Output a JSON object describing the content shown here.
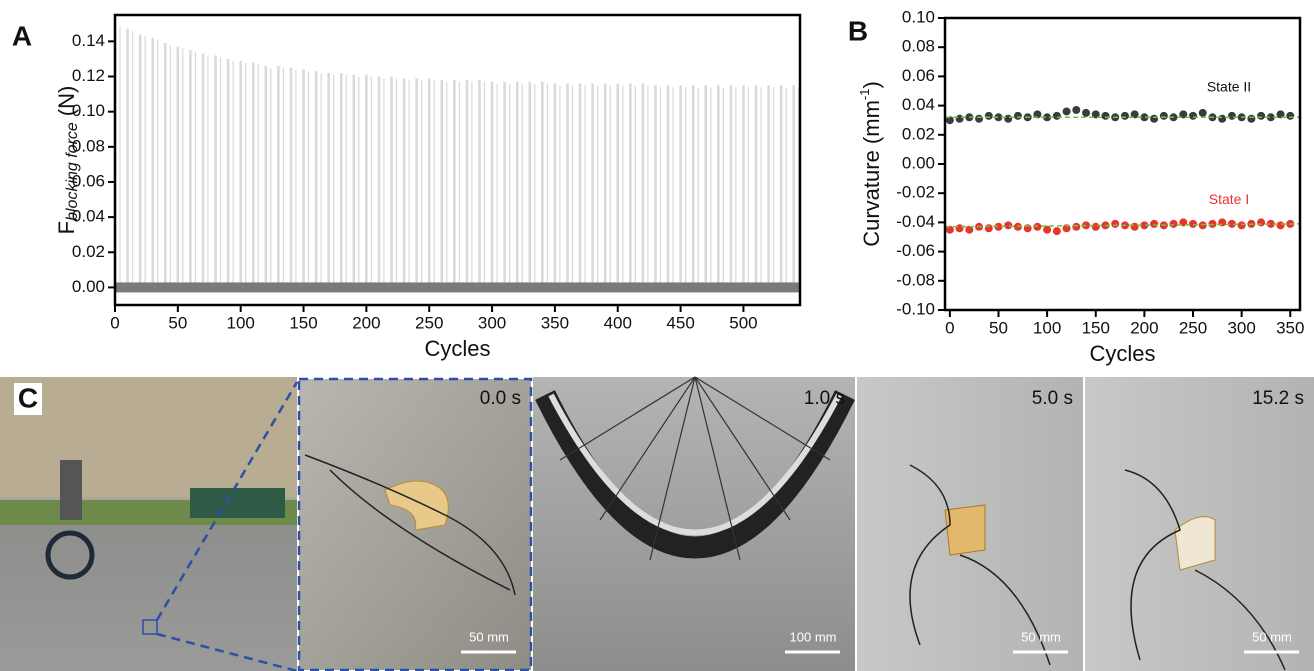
{
  "chart_data": [
    {
      "type": "spike",
      "panel": "A",
      "xlabel": "Cycles",
      "ylabel": [
        "F",
        "blocking force",
        "(N)"
      ],
      "x": [
        0,
        10,
        20,
        30,
        40,
        50,
        60,
        70,
        80,
        90,
        100,
        110,
        120,
        130,
        140,
        150,
        160,
        170,
        180,
        190,
        200,
        210,
        220,
        230,
        240,
        250,
        260,
        270,
        280,
        290,
        300,
        310,
        320,
        330,
        340,
        350,
        360,
        370,
        380,
        390,
        400,
        410,
        420,
        430,
        440,
        450,
        460,
        470,
        480,
        490,
        500,
        510,
        520,
        530,
        540
      ],
      "values": [
        0.15,
        0.147,
        0.144,
        0.142,
        0.139,
        0.137,
        0.135,
        0.133,
        0.132,
        0.13,
        0.129,
        0.128,
        0.126,
        0.126,
        0.125,
        0.124,
        0.123,
        0.122,
        0.122,
        0.121,
        0.121,
        0.12,
        0.12,
        0.119,
        0.119,
        0.119,
        0.118,
        0.118,
        0.118,
        0.118,
        0.117,
        0.117,
        0.117,
        0.117,
        0.117,
        0.116,
        0.116,
        0.116,
        0.116,
        0.116,
        0.116,
        0.116,
        0.116,
        0.115,
        0.115,
        0.115,
        0.115,
        0.115,
        0.115,
        0.115,
        0.115,
        0.115,
        0.115,
        0.115,
        0.115
      ],
      "baseline": 0,
      "color": "#d6dadb",
      "baseline_color": "#7a7a7a",
      "xlim": [
        0,
        545
      ],
      "xticks": [
        0,
        50,
        100,
        150,
        200,
        250,
        300,
        350,
        400,
        450,
        500
      ],
      "ylim": [
        -0.01,
        0.155
      ],
      "yticks": [
        {
          "value": 0,
          "label": "0.00"
        },
        {
          "value": 0.02,
          "label": "0.02"
        },
        {
          "value": 0.04,
          "label": "0.04"
        },
        {
          "value": 0.06,
          "label": "0.06"
        },
        {
          "value": 0.08,
          "label": "0.08"
        },
        {
          "value": 0.1,
          "label": "0.10"
        },
        {
          "value": 0.12,
          "label": "0.12"
        },
        {
          "value": 0.14,
          "label": "0.14"
        }
      ]
    },
    {
      "type": "scatter",
      "panel": "B",
      "xlabel": "Cycles",
      "ylabel": [
        "Curvature (mm",
        "-1",
        ")"
      ],
      "x": [
        0,
        10,
        20,
        30,
        40,
        50,
        60,
        70,
        80,
        90,
        100,
        110,
        120,
        130,
        140,
        150,
        160,
        170,
        180,
        190,
        200,
        210,
        220,
        230,
        240,
        250,
        260,
        270,
        280,
        290,
        300,
        310,
        320,
        330,
        340,
        350
      ],
      "series": [
        {
          "name": "State II",
          "color": "#3c3c3c",
          "label_color": "#111111",
          "values": [
            0.03,
            0.031,
            0.032,
            0.031,
            0.033,
            0.032,
            0.031,
            0.033,
            0.032,
            0.034,
            0.032,
            0.033,
            0.036,
            0.037,
            0.035,
            0.034,
            0.033,
            0.032,
            0.033,
            0.034,
            0.032,
            0.031,
            0.033,
            0.032,
            0.034,
            0.033,
            0.035,
            0.032,
            0.031,
            0.033,
            0.032,
            0.031,
            0.033,
            0.032,
            0.034,
            0.033
          ],
          "trend": [
            0.032,
            0.032
          ]
        },
        {
          "name": "State I",
          "color": "#e8352b",
          "label_color": "#e8352b",
          "values": [
            -0.045,
            -0.044,
            -0.045,
            -0.043,
            -0.044,
            -0.043,
            -0.042,
            -0.043,
            -0.044,
            -0.043,
            -0.045,
            -0.046,
            -0.044,
            -0.043,
            -0.042,
            -0.043,
            -0.042,
            -0.041,
            -0.042,
            -0.043,
            -0.042,
            -0.041,
            -0.042,
            -0.041,
            -0.04,
            -0.041,
            -0.042,
            -0.041,
            -0.04,
            -0.041,
            -0.042,
            -0.041,
            -0.04,
            -0.041,
            -0.042,
            -0.041
          ],
          "trend": [
            -0.043,
            -0.041
          ]
        }
      ],
      "trend_color": "#6cc24a",
      "xlim": [
        -5,
        360
      ],
      "xticks": [
        0,
        50,
        100,
        150,
        200,
        250,
        300,
        350
      ],
      "ylim": [
        -0.1,
        0.1
      ],
      "yticks": [
        {
          "value": -0.1,
          "label": "-0.10"
        },
        {
          "value": -0.08,
          "label": "-0.08"
        },
        {
          "value": -0.06,
          "label": "-0.06"
        },
        {
          "value": -0.04,
          "label": "-0.04"
        },
        {
          "value": -0.02,
          "label": "-0.02"
        },
        {
          "value": 0,
          "label": "0.00"
        },
        {
          "value": 0.02,
          "label": "0.02"
        },
        {
          "value": 0.04,
          "label": "0.04"
        },
        {
          "value": 0.06,
          "label": "0.06"
        },
        {
          "value": 0.08,
          "label": "0.08"
        },
        {
          "value": 0.1,
          "label": "0.10"
        }
      ]
    }
  ],
  "photos": {
    "panel": "C",
    "frames": [
      {
        "time": "0.0 s",
        "scale": "50 mm"
      },
      {
        "time": "1.0 s",
        "scale": "100 mm"
      },
      {
        "time": "5.0 s",
        "scale": "50 mm"
      },
      {
        "time": "15.2 s",
        "scale": "50 mm"
      }
    ]
  }
}
